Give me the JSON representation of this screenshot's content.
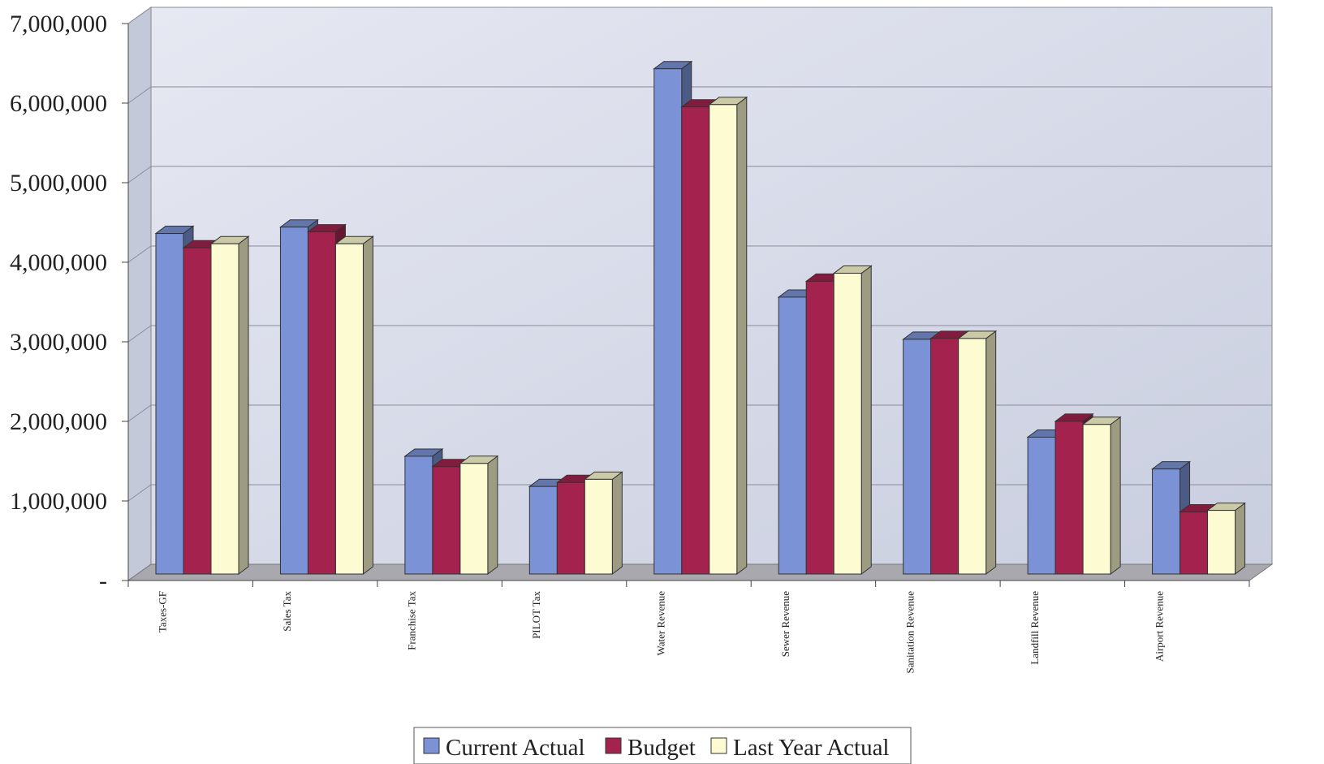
{
  "chart_data": {
    "type": "bar",
    "style": "3d-clustered-column",
    "categories": [
      "Taxes-GF",
      "Sales Tax",
      "Franchise Tax",
      "PILOT Tax",
      "Water Revenue",
      "Sewer Revenue",
      "Sanitation Revenue",
      "Landfill Revenue",
      "Airport Revenue"
    ],
    "series": [
      {
        "name": "Current Actual",
        "color": "#7b93d6",
        "values": [
          4280000,
          4360000,
          1480000,
          1100000,
          6350000,
          3480000,
          2950000,
          1720000,
          1320000
        ]
      },
      {
        "name": "Budget",
        "color": "#a3234e",
        "values": [
          4100000,
          4300000,
          1350000,
          1150000,
          5870000,
          3680000,
          2960000,
          1920000,
          780000
        ]
      },
      {
        "name": "Last Year Actual",
        "color": "#fdfbd2",
        "values": [
          4150000,
          4150000,
          1390000,
          1190000,
          5900000,
          3780000,
          2960000,
          1880000,
          800000
        ]
      }
    ],
    "yticks": [
      {
        "value": 0,
        "label": "-"
      },
      {
        "value": 1000000,
        "label": "1,000,000"
      },
      {
        "value": 2000000,
        "label": "2,000,000"
      },
      {
        "value": 3000000,
        "label": "3,000,000"
      },
      {
        "value": 4000000,
        "label": "4,000,000"
      },
      {
        "value": 5000000,
        "label": "5,000,000"
      },
      {
        "value": 6000000,
        "label": "6,000,000"
      },
      {
        "value": 7000000,
        "label": "7,000,000"
      }
    ],
    "ylim": [
      0,
      7000000
    ],
    "grid": true,
    "legend": "bottom-center",
    "colors": {
      "wall": "#d3d8e8",
      "floor": "#a8a8ae",
      "grid": "#8c8c9c"
    }
  }
}
